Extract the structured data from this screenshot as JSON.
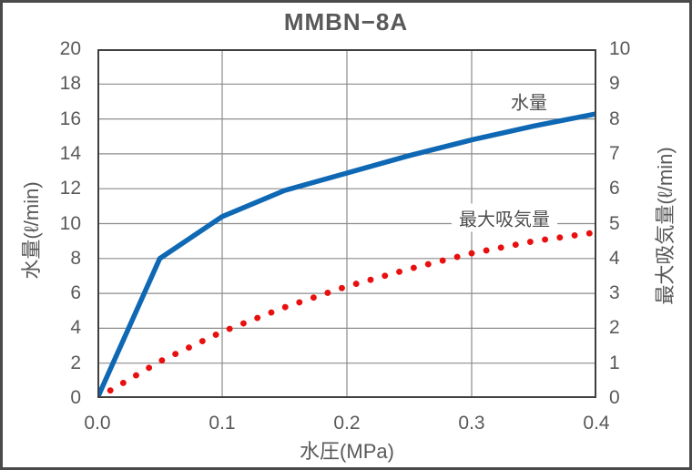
{
  "figure": {
    "border_color": "#4a4a4a",
    "background": "#ffffff",
    "text_color": "#595959"
  },
  "chart_data": {
    "type": "line",
    "title": "MMBN−8A",
    "grid": true,
    "legend_position": "inline-labels",
    "x_axis": {
      "label": "水圧(MPa)",
      "min": 0,
      "max": 0.4,
      "ticks": [
        "0.0",
        "0.1",
        "0.2",
        "0.3",
        "0.4"
      ]
    },
    "y_axis_left": {
      "label": "水量(ℓ/min)",
      "min": 0,
      "max": 20,
      "ticks": [
        "0",
        "2",
        "4",
        "6",
        "8",
        "10",
        "12",
        "14",
        "16",
        "18",
        "20"
      ]
    },
    "y_axis_right": {
      "label": "最大吸気量(ℓ/min)",
      "min": 0,
      "max": 10,
      "ticks": [
        "0",
        "1",
        "2",
        "3",
        "4",
        "5",
        "6",
        "7",
        "8",
        "9",
        "10"
      ]
    },
    "x": [
      0,
      0.05,
      0.1,
      0.15,
      0.2,
      0.25,
      0.3,
      0.35,
      0.4
    ],
    "series": [
      {
        "name": "水量",
        "axis": "left",
        "style": "solid",
        "color": "#0e68b4",
        "line_width": 5.5,
        "values": [
          0,
          8.0,
          10.4,
          11.9,
          12.9,
          13.9,
          14.8,
          15.6,
          16.3
        ]
      },
      {
        "name": "最大吸気量",
        "axis": "right",
        "style": "dotted",
        "color": "#e8100f",
        "dot_diameter": 6.8,
        "dot_spacing": 16.3,
        "values": [
          0,
          1.05,
          1.9,
          2.6,
          3.2,
          3.7,
          4.15,
          4.5,
          4.75
        ]
      }
    ],
    "grid_color": "#8c8c8c",
    "frame_color": "#3f3f3f"
  }
}
